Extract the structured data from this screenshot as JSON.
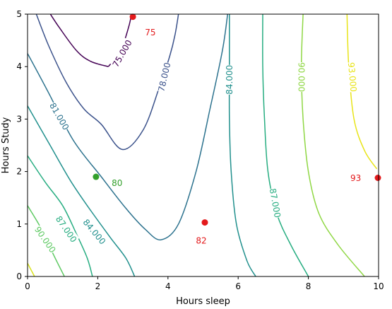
{
  "chart_data": {
    "type": "contour",
    "xlabel": "Hours sleep",
    "ylabel": "Hours Study",
    "xlim": [
      0,
      10
    ],
    "ylim": [
      0,
      5
    ],
    "xticks": [
      "0",
      "2",
      "4",
      "6",
      "8",
      "10"
    ],
    "yticks": [
      "0",
      "1",
      "2",
      "3",
      "4",
      "5"
    ],
    "colormap": "viridis",
    "contours": [
      {
        "level": 75,
        "label": "75.000",
        "color": "#440154",
        "points": [
          [
            2.3,
            4.0
          ],
          [
            1.8,
            4.1
          ],
          [
            1.4,
            4.3
          ],
          [
            0.9,
            4.75
          ],
          [
            0.65,
            5.0
          ]
        ]
      },
      {
        "level": 75,
        "label": "",
        "color": "#440154",
        "points": [
          [
            2.3,
            4.0
          ],
          [
            2.65,
            4.3
          ],
          [
            2.9,
            4.8
          ],
          [
            2.95,
            5.0
          ]
        ]
      },
      {
        "level": 78,
        "label": "78.000",
        "color": "#3b528b",
        "points": [
          [
            0.25,
            5.0
          ],
          [
            0.6,
            4.4
          ],
          [
            1.1,
            3.7
          ],
          [
            1.6,
            3.2
          ],
          [
            2.1,
            2.9
          ],
          [
            2.7,
            2.42
          ],
          [
            3.3,
            2.8
          ],
          [
            3.75,
            3.6
          ],
          [
            4.05,
            4.2
          ],
          [
            4.2,
            4.6
          ],
          [
            4.3,
            5.0
          ]
        ]
      },
      {
        "level": 81,
        "label": "81.000",
        "color": "#2c728e",
        "points": [
          [
            0,
            4.25
          ],
          [
            0.6,
            3.5
          ],
          [
            1.3,
            2.6
          ],
          [
            2.1,
            1.9
          ],
          [
            2.8,
            1.3
          ],
          [
            3.35,
            0.9
          ],
          [
            3.8,
            0.7
          ],
          [
            4.3,
            1.0
          ],
          [
            4.8,
            2.0
          ],
          [
            5.2,
            3.2
          ],
          [
            5.55,
            4.3
          ],
          [
            5.7,
            5.0
          ]
        ]
      },
      {
        "level": 84,
        "label": "84.000",
        "color": "#21908d",
        "points": [
          [
            0,
            3.25
          ],
          [
            0.6,
            2.55
          ],
          [
            1.2,
            1.85
          ],
          [
            1.7,
            1.35
          ],
          [
            2.35,
            0.75
          ],
          [
            2.8,
            0.35
          ],
          [
            3.05,
            0
          ]
        ]
      },
      {
        "level": 84,
        "label": "",
        "color": "#21908d",
        "points": [
          [
            5.75,
            5.0
          ],
          [
            5.75,
            4.0
          ],
          [
            5.75,
            3.0
          ],
          [
            5.8,
            2.0
          ],
          [
            5.95,
            1.0
          ],
          [
            6.25,
            0.3
          ],
          [
            6.5,
            0
          ]
        ]
      },
      {
        "level": 87,
        "label": "87.000",
        "color": "#27ad81",
        "points": [
          [
            0,
            2.3
          ],
          [
            0.5,
            1.8
          ],
          [
            1.0,
            1.35
          ],
          [
            1.4,
            0.8
          ],
          [
            1.7,
            0.35
          ],
          [
            1.85,
            0
          ]
        ]
      },
      {
        "level": 87,
        "label": "",
        "color": "#27ad81",
        "points": [
          [
            6.7,
            5.0
          ],
          [
            6.7,
            4.0
          ],
          [
            6.75,
            3.0
          ],
          [
            6.85,
            2.0
          ],
          [
            7.1,
            1.2
          ],
          [
            7.5,
            0.6
          ],
          [
            8.0,
            0
          ]
        ]
      },
      {
        "level": 90,
        "label": "90.000",
        "color": "#5dc962",
        "points": [
          [
            0,
            1.35
          ],
          [
            0.4,
            0.9
          ],
          [
            0.75,
            0.4
          ],
          [
            1.05,
            0
          ]
        ]
      },
      {
        "level": 90,
        "label": "",
        "color": "#8fd744",
        "points": [
          [
            7.85,
            5.0
          ],
          [
            7.8,
            4.0
          ],
          [
            7.85,
            3.0
          ],
          [
            8.0,
            2.0
          ],
          [
            8.3,
            1.2
          ],
          [
            8.85,
            0.6
          ],
          [
            9.6,
            0
          ]
        ]
      },
      {
        "level": 93,
        "label": "",
        "color": "#d8e219",
        "points": [
          [
            0,
            0.25
          ],
          [
            0.2,
            0
          ]
        ]
      },
      {
        "level": 93,
        "label": "93.000",
        "color": "#e8e419",
        "points": [
          [
            9.1,
            5.0
          ],
          [
            9.15,
            4.0
          ],
          [
            9.3,
            3.0
          ],
          [
            9.6,
            2.4
          ],
          [
            9.95,
            2.05
          ]
        ]
      }
    ],
    "contour_labels": [
      {
        "text": "75.000",
        "x": 2.7,
        "y": 4.25,
        "rotation": -60,
        "color": "#440154"
      },
      {
        "text": "78.000",
        "x": 3.9,
        "y": 3.8,
        "rotation": -77,
        "color": "#3b528b"
      },
      {
        "text": "81.000",
        "x": 0.9,
        "y": 3.05,
        "rotation": 60,
        "color": "#2c728e"
      },
      {
        "text": "84.000",
        "x": 5.75,
        "y": 3.75,
        "rotation": -90,
        "color": "#21908d"
      },
      {
        "text": "84.000",
        "x": 1.9,
        "y": 0.85,
        "rotation": 50,
        "color": "#21908d"
      },
      {
        "text": "87.000",
        "x": 7.05,
        "y": 1.4,
        "rotation": 80,
        "color": "#27ad81"
      },
      {
        "text": "87.000",
        "x": 1.1,
        "y": 0.9,
        "rotation": 55,
        "color": "#27ad81"
      },
      {
        "text": "90.000",
        "x": 7.8,
        "y": 3.8,
        "rotation": 90,
        "color": "#8fd744"
      },
      {
        "text": "90.000",
        "x": 0.5,
        "y": 0.7,
        "rotation": 55,
        "color": "#5dc962"
      },
      {
        "text": "93.000",
        "x": 9.25,
        "y": 3.8,
        "rotation": 85,
        "color": "#e8e419"
      }
    ],
    "points": [
      {
        "x": 3.0,
        "y": 4.95,
        "label": "75",
        "label_x": 3.5,
        "label_y": 4.65,
        "color": "#e31a1c"
      },
      {
        "x": 1.95,
        "y": 1.9,
        "label": "80",
        "label_x": 2.55,
        "label_y": 1.78,
        "color": "#33a02c"
      },
      {
        "x": 5.05,
        "y": 1.03,
        "label": "82",
        "label_x": 4.95,
        "label_y": 0.68,
        "color": "#e31a1c"
      },
      {
        "x": 9.98,
        "y": 1.88,
        "label": "93",
        "label_x": 9.35,
        "label_y": 1.87,
        "color": "#e31a1c"
      }
    ]
  }
}
